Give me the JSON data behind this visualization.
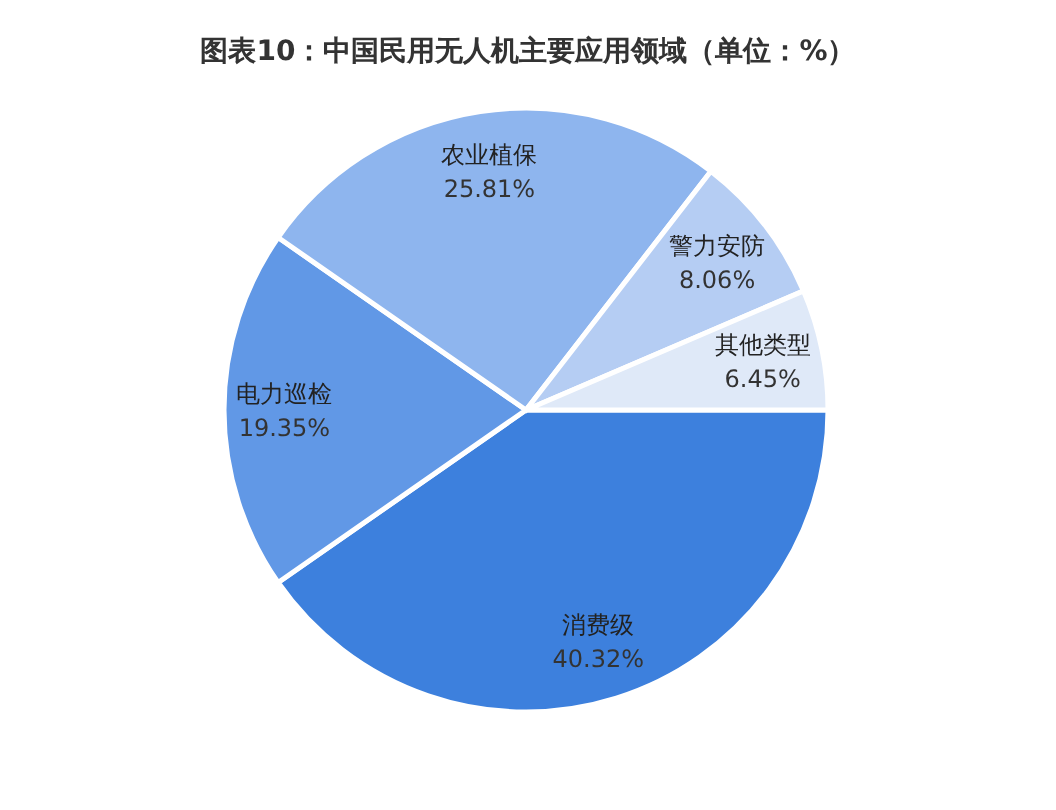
{
  "chart_data": {
    "type": "pie",
    "title": "图表10：中国民用无人机主要应用领域（单位：%）",
    "categories": [
      "消费级",
      "电力巡检",
      "农业植保",
      "警力安防",
      "其他类型"
    ],
    "values": [
      40.32,
      19.35,
      25.81,
      8.06,
      6.45
    ],
    "colors": [
      "#3d80dd",
      "#6198e6",
      "#8eb5ee",
      "#b5cdf3",
      "#dfe9f8"
    ],
    "value_labels": [
      "40.32%",
      "19.35%",
      "25.81%",
      "8.06%",
      "6.45%"
    ],
    "legend": false
  }
}
